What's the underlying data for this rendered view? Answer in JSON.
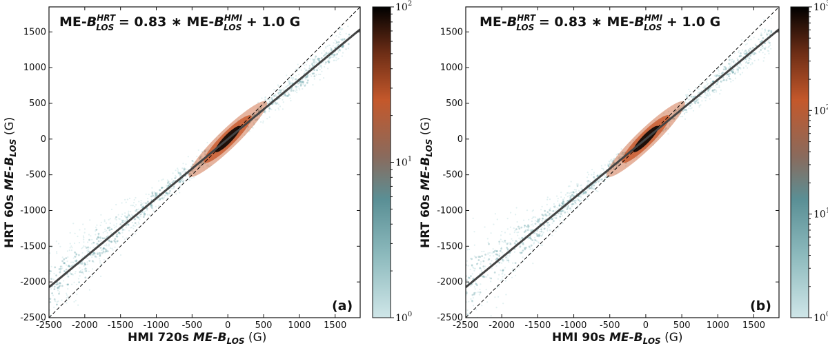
{
  "chart_data": [
    {
      "type": "scatter",
      "panel_label": "(a)",
      "title_parts": {
        "prefix": "ME-",
        "b": "B",
        "sup": "HRT",
        "sub": "LOS",
        "eq": " = 0.83 ∗ ME-",
        "b2": "B",
        "sup2": "HMI",
        "sub2": "LOS",
        "tail": " +  1.0 G"
      },
      "xlabel_parts": {
        "pre": "HMI 720s ",
        "italic": "ME-B",
        "sub": "LOS",
        "post": " (G)"
      },
      "ylabel_parts": {
        "pre": "HRT 60s ",
        "italic": "ME-B",
        "sub": "LOS",
        "post": " (G)"
      },
      "xlim": [
        -2500,
        1850
      ],
      "ylim": [
        -2500,
        1850
      ],
      "x_ticks": [
        -2500,
        -2000,
        -1500,
        -1000,
        -500,
        0,
        500,
        1000,
        1500
      ],
      "y_ticks": [
        -2500,
        -2000,
        -1500,
        -1000,
        -500,
        0,
        500,
        1000,
        1500
      ],
      "x_tick_labels": [
        "-2500",
        "-2000",
        "-1500",
        "-1000",
        "-500",
        "0",
        "500",
        "1000",
        "1500"
      ],
      "y_tick_labels": [
        "-2500",
        "-2000",
        "-1500",
        "-1000",
        "-500",
        "0",
        "500",
        "1000",
        "1500"
      ],
      "fit": {
        "slope": 0.83,
        "intercept": 1.0
      },
      "identity_line": true,
      "density_extent": [
        -2500,
        1700
      ],
      "colorbar": {
        "scale": "log",
        "ticks": [
          "10^0",
          "10^1",
          "10^2"
        ],
        "tick_exponents": [
          0,
          1,
          2
        ],
        "min_exp": 0,
        "max_exp": 2
      }
    },
    {
      "type": "scatter",
      "panel_label": "(b)",
      "title_parts": {
        "prefix": "ME-",
        "b": "B",
        "sup": "HRT",
        "sub": "LOS",
        "eq": " = 0.83 ∗ ME-",
        "b2": "B",
        "sup2": "HMI",
        "sub2": "LOS",
        "tail": " +  1.0 G"
      },
      "xlabel_parts": {
        "pre": "HMI 90s ",
        "italic": "ME-B",
        "sub": "LOS",
        "post": " (G)"
      },
      "ylabel_parts": {
        "pre": "HRT 60s ",
        "italic": "ME-B",
        "sub": "LOS",
        "post": " (G)"
      },
      "xlim": [
        -2500,
        1850
      ],
      "ylim": [
        -2500,
        1850
      ],
      "x_ticks": [
        -2500,
        -2000,
        -1500,
        -1000,
        -500,
        0,
        500,
        1000,
        1500
      ],
      "y_ticks": [
        -2500,
        -2000,
        -1500,
        -1000,
        -500,
        0,
        500,
        1000,
        1500
      ],
      "x_tick_labels": [
        "-2500",
        "-2000",
        "-1500",
        "-1000",
        "-500",
        "0",
        "500",
        "1000",
        "1500"
      ],
      "y_tick_labels": [
        "-2500",
        "-2000",
        "-1500",
        "-1000",
        "-500",
        "0",
        "500",
        "1000",
        "1500"
      ],
      "fit": {
        "slope": 0.83,
        "intercept": 1.0
      },
      "identity_line": true,
      "density_extent": [
        -2500,
        1750
      ],
      "colorbar": {
        "scale": "log",
        "ticks": [
          "10^0",
          "10^1",
          "10^2",
          "10^3"
        ],
        "tick_exponents": [
          0,
          1,
          2,
          3
        ],
        "min_exp": 0,
        "max_exp": 3
      }
    }
  ],
  "colors": {
    "density_low": "#c8e4e6",
    "density_mid": "#5b9aa0",
    "density_high": "#c8582a",
    "density_peak": "#000000",
    "fit_line": "#444444",
    "identity_line": "#000000"
  }
}
